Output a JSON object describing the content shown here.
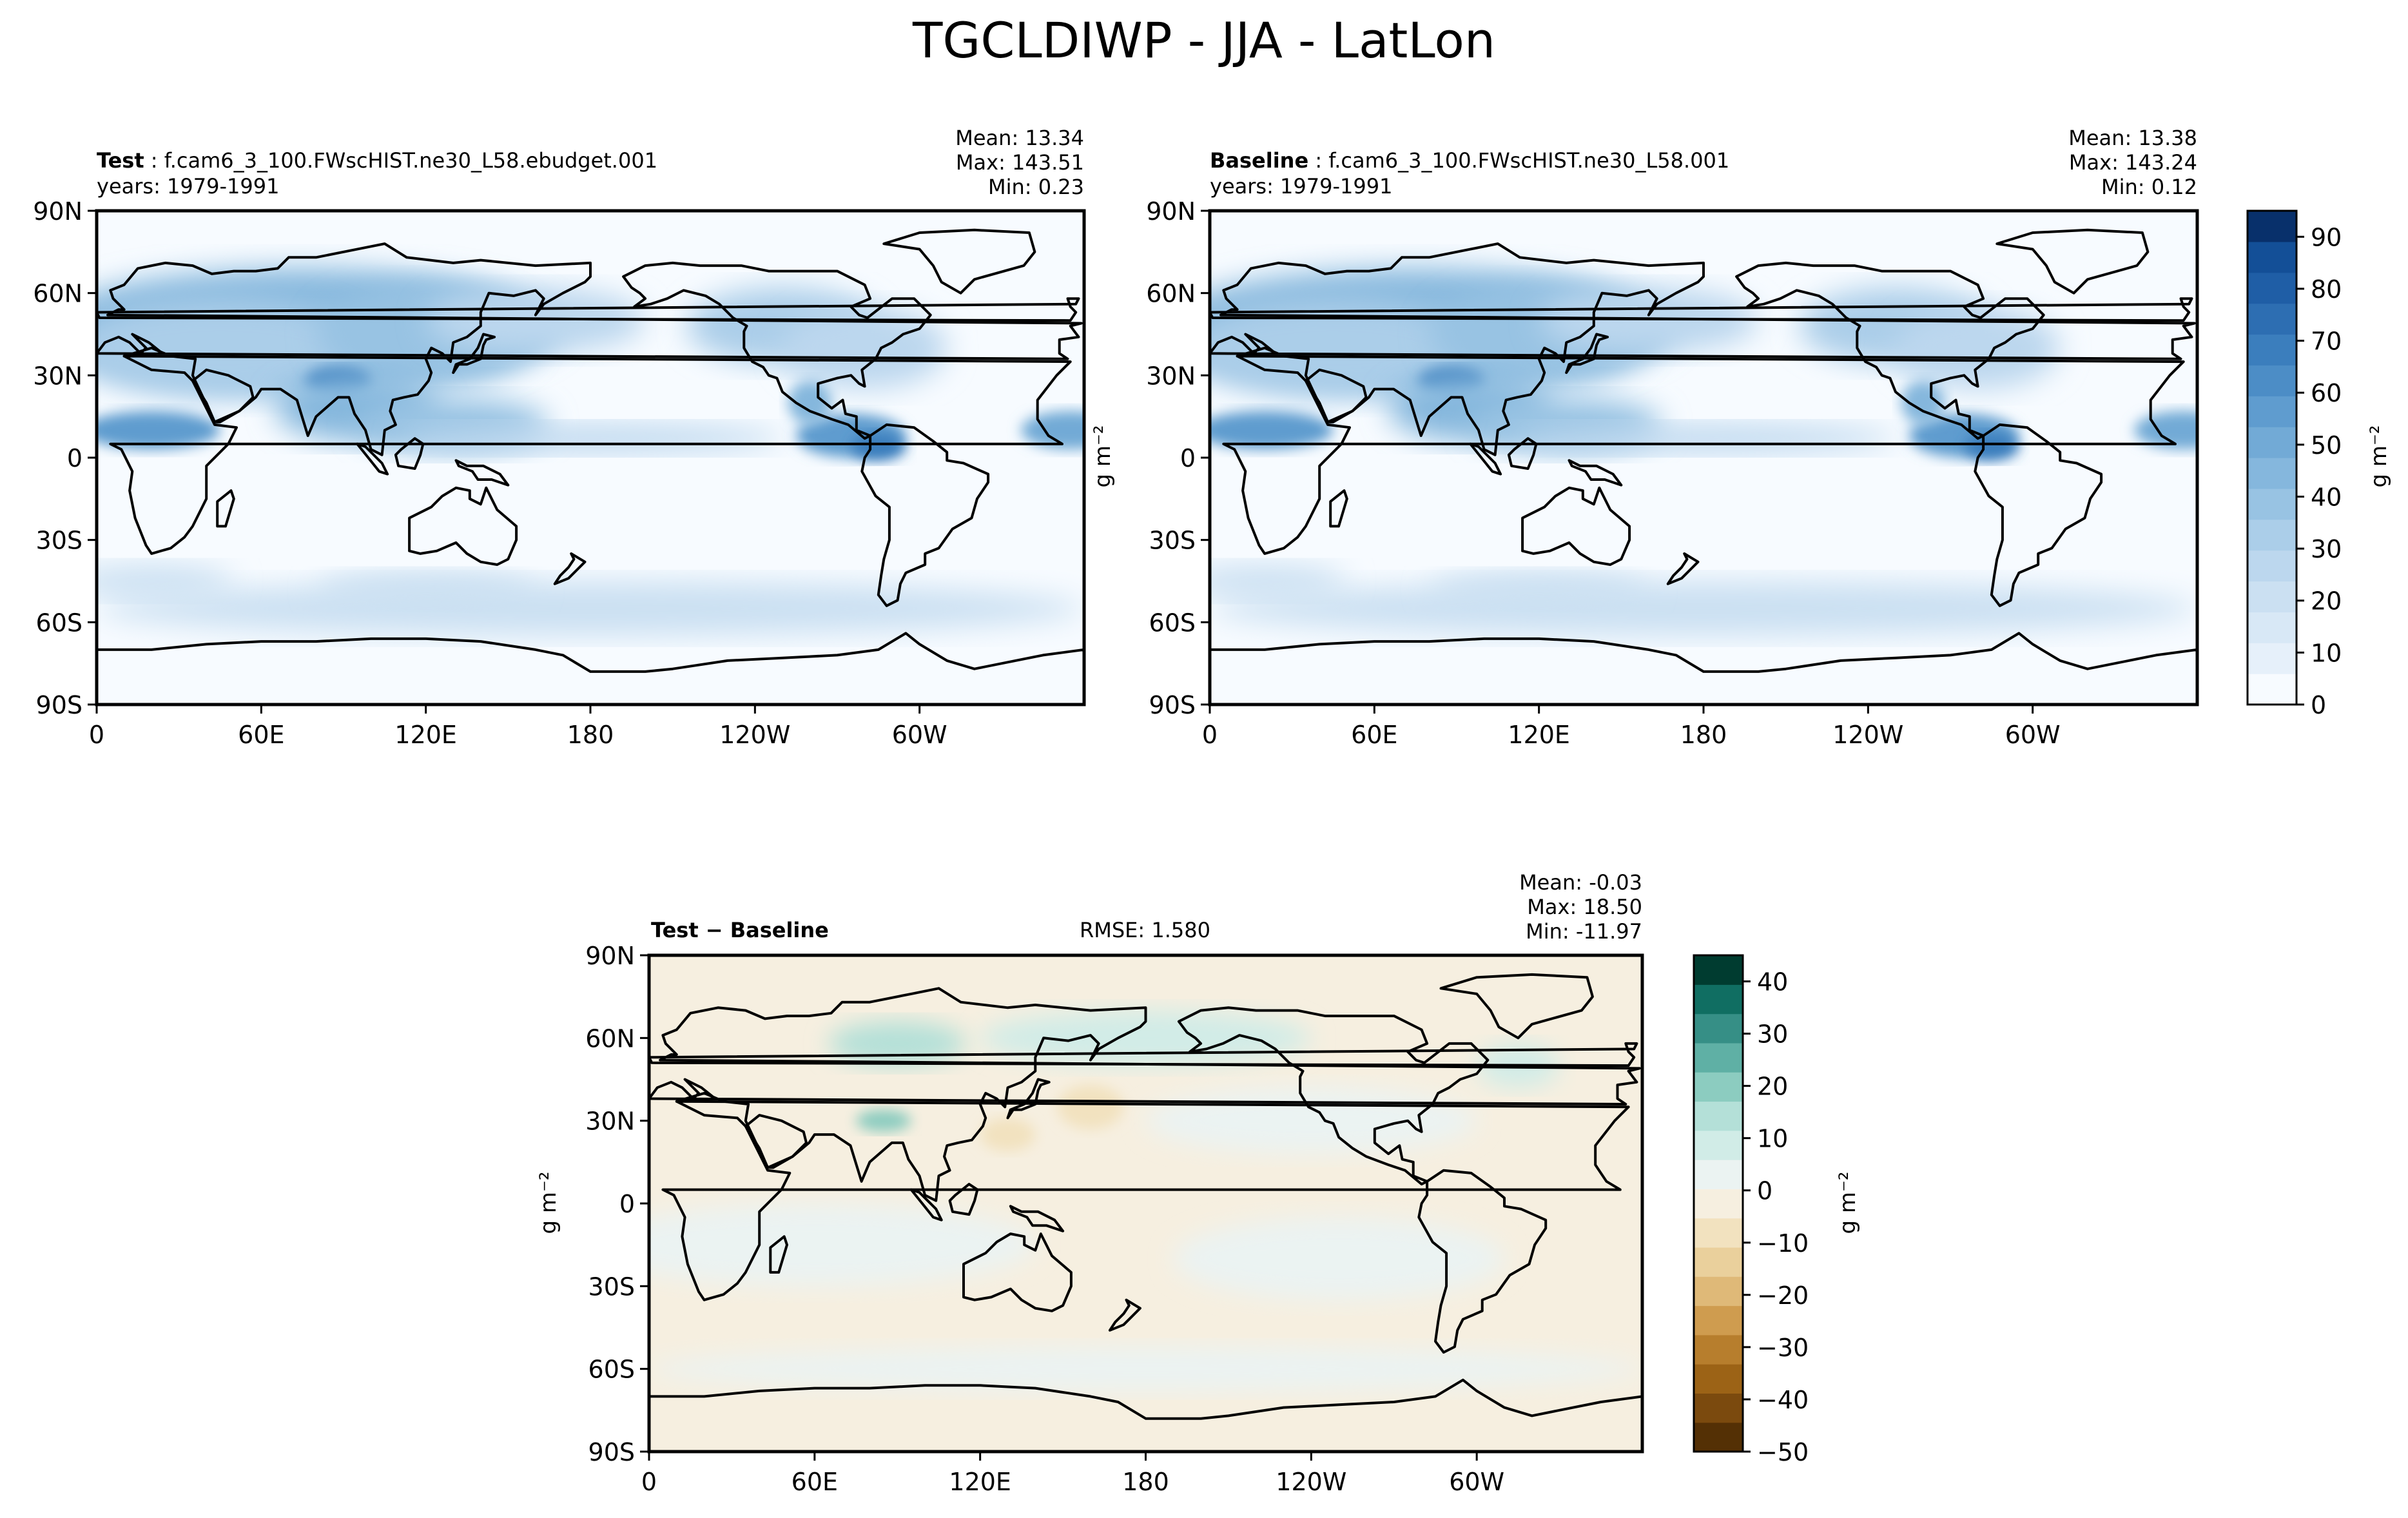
{
  "figure": {
    "title": "TGCLDIWP - JJA - LatLon"
  },
  "colors": {
    "test_baseline_colormap": [
      "#f7fbff",
      "#e6f0fa",
      "#d8e8f6",
      "#cbe0f2",
      "#bcd7ee",
      "#abcee9",
      "#98c3e3",
      "#85b7dd",
      "#72aad6",
      "#5f9ccf",
      "#4c8dc6",
      "#3b7ebd",
      "#2d6eb2",
      "#1f5ea6",
      "#134f97",
      "#08306b"
    ],
    "diff_colormap": [
      "#543005",
      "#7b4a0e",
      "#9c6316",
      "#b77e2d",
      "#cf9c4f",
      "#dfb978",
      "#ead09c",
      "#f2e2bf",
      "#f6efe0",
      "#ebf3f2",
      "#d1ece7",
      "#b4e0d8",
      "#8cccc0",
      "#5fb0a5",
      "#368f86",
      "#106e62",
      "#003c30"
    ],
    "coastline": "#000000"
  },
  "panels": [
    {
      "id": "test",
      "case_label": "Test",
      "case_name": "f.cam6_3_100.FWscHIST.ne30_L58.ebudget.001",
      "years": "years: 1979-1991",
      "stats": [
        "Mean: 13.34",
        "Max: 143.51",
        "Min:  0.23"
      ]
    },
    {
      "id": "baseline",
      "case_label": "Baseline",
      "case_name": "f.cam6_3_100.FWscHIST.ne30_L58.001",
      "years": "years: 1979-1991",
      "stats": [
        "Mean: 13.38",
        "Max: 143.24",
        "Min:  0.12"
      ],
      "side_label": "g m⁻²"
    },
    {
      "id": "diff",
      "case_label": "Test − Baseline",
      "rmse": "RMSE: 1.580",
      "stats": [
        "Mean: -0.03",
        "Max: 18.50",
        "Min: -11.97"
      ],
      "side_label": "g m⁻²"
    }
  ],
  "chart_data": [
    {
      "type": "heatmap",
      "name": "Test",
      "x_ticks": [
        "0",
        "60E",
        "120E",
        "180",
        "120W",
        "60W"
      ],
      "y_ticks": [
        "90N",
        "60N",
        "30N",
        "0",
        "30S",
        "60S",
        "90S"
      ],
      "xlim": [
        0,
        360
      ],
      "ylim": [
        -90,
        90
      ],
      "mean": 13.34,
      "max": 143.51,
      "min": 0.23
    },
    {
      "type": "heatmap",
      "name": "Baseline",
      "x_ticks": [
        "0",
        "60E",
        "120E",
        "180",
        "120W",
        "60W"
      ],
      "y_ticks": [
        "90N",
        "60N",
        "30N",
        "0",
        "30S",
        "60S",
        "90S"
      ],
      "xlim": [
        0,
        360
      ],
      "ylim": [
        -90,
        90
      ],
      "mean": 13.38,
      "max": 143.24,
      "min": 0.12
    },
    {
      "type": "heatmap",
      "name": "Test − Baseline",
      "x_ticks": [
        "0",
        "60E",
        "120E",
        "180",
        "120W",
        "60W"
      ],
      "y_ticks": [
        "90N",
        "60N",
        "30N",
        "0",
        "30S",
        "60S",
        "90S"
      ],
      "xlim": [
        0,
        360
      ],
      "ylim": [
        -90,
        90
      ],
      "rmse": 1.58,
      "mean": -0.03,
      "max": 18.5,
      "min": -11.97
    }
  ],
  "colorbars": [
    {
      "id": "main",
      "label": "g m⁻²",
      "range": [
        0,
        95
      ],
      "tick_values": [
        0,
        10,
        20,
        30,
        40,
        50,
        60,
        70,
        80,
        90
      ],
      "tick_labels": [
        "0",
        "10",
        "20",
        "30",
        "40",
        "50",
        "60",
        "70",
        "80",
        "90"
      ]
    },
    {
      "id": "diff",
      "label": "g m⁻²",
      "range": [
        -50,
        45
      ],
      "tick_values": [
        -50,
        -40,
        -30,
        -20,
        -10,
        0,
        10,
        20,
        30,
        40
      ],
      "tick_labels": [
        "−50",
        "−40",
        "−30",
        "−20",
        "−10",
        "0",
        "10",
        "20",
        "30",
        "40"
      ]
    }
  ]
}
